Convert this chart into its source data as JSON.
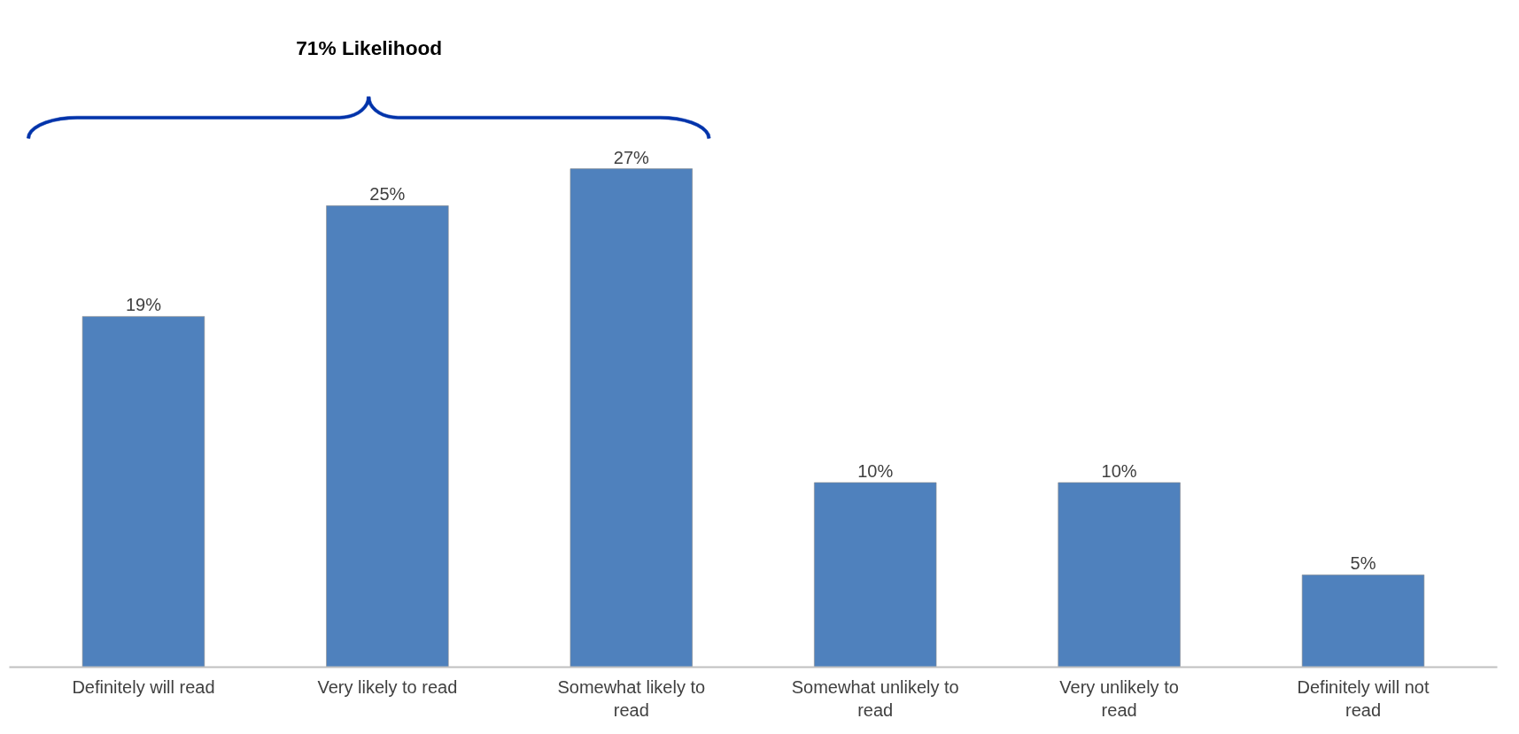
{
  "chart_data": {
    "type": "bar",
    "categories": [
      "Definitely will read",
      "Very likely to read",
      "Somewhat likely to read",
      "Somewhat unlikely to read",
      "Very unlikely to read",
      "Definitely will not read"
    ],
    "values": [
      19,
      25,
      27,
      10,
      10,
      5
    ],
    "color": "#4f81bd",
    "data_labels": true,
    "value_labels": [
      "19%",
      "25%",
      "27%",
      "10%",
      "10%",
      "5%"
    ],
    "annotations": [
      "71% Likelihood"
    ],
    "grid": false
  }
}
